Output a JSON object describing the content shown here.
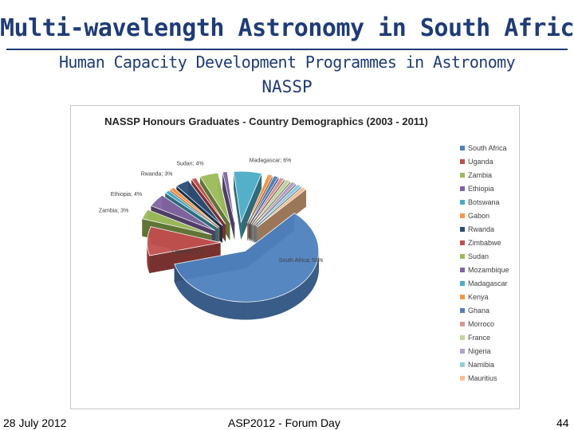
{
  "slide": {
    "title": "Multi-wavelength Astronomy in South Africa",
    "subtitle": "Human Capacity Development Programmes in Astronomy",
    "section": "NASSP"
  },
  "footer": {
    "date": "28 July 2012",
    "event": "ASP2012 - Forum Day",
    "page": "44"
  },
  "chart_data": {
    "type": "pie",
    "title": "NASSP Honours Graduates - Country Demographics (2003 - 2011)",
    "legend_position": "right",
    "slices": [
      {
        "name": "South Africa",
        "value": 58,
        "label": "South Africa; 58%",
        "color": "#4f81bd"
      },
      {
        "name": "Uganda",
        "value": 9,
        "label": "Uganda; 9%",
        "color": "#c0504d"
      },
      {
        "name": "Zambia",
        "value": 3,
        "label": "Zambia; 3%",
        "color": "#9bbb59"
      },
      {
        "name": "Ethiopia",
        "value": 4,
        "label": "Ethiopia; 4%",
        "color": "#8064a2"
      },
      {
        "name": "Botswana",
        "value": 1,
        "label": "",
        "color": "#4bacc6"
      },
      {
        "name": "Gabon",
        "value": 1,
        "label": "",
        "color": "#f79646"
      },
      {
        "name": "Rwanda",
        "value": 3,
        "label": "Rwanda; 3%",
        "color": "#2c4d75"
      },
      {
        "name": "Zimbabwe",
        "value": 1,
        "label": "",
        "color": "#c0504d"
      },
      {
        "name": "Sudan",
        "value": 4,
        "label": "Sudan; 4%",
        "color": "#9bbb59"
      },
      {
        "name": "Mozambique",
        "value": 1,
        "label": "",
        "color": "#8064a2"
      },
      {
        "name": "Madagascar",
        "value": 6,
        "label": "Madagascar; 6%",
        "color": "#4bacc6"
      },
      {
        "name": "Kenya",
        "value": 1,
        "label": "",
        "color": "#f79646"
      },
      {
        "name": "Ghana",
        "value": 1,
        "label": "",
        "color": "#4f81bd"
      },
      {
        "name": "Morroco",
        "value": 1,
        "label": "",
        "color": "#d99694"
      },
      {
        "name": "France",
        "value": 1,
        "label": "",
        "color": "#c3d69b"
      },
      {
        "name": "Nigeria",
        "value": 1,
        "label": "",
        "color": "#b3a2c7"
      },
      {
        "name": "Namibia",
        "value": 1,
        "label": "",
        "color": "#93cddd"
      },
      {
        "name": "Mauritius",
        "value": 1,
        "label": "",
        "color": "#fac090"
      }
    ]
  }
}
